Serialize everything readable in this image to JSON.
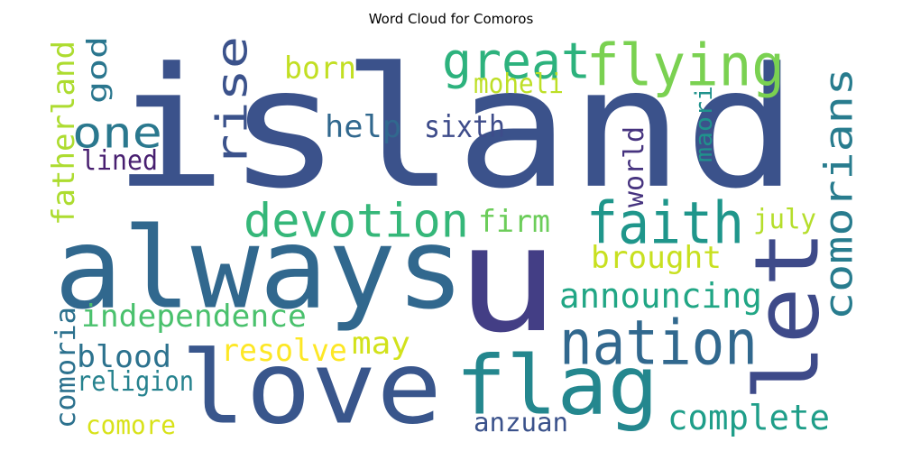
{
  "title": "Word Cloud for Comoros",
  "words": [
    {
      "text": "island",
      "color": "#3b528b"
    },
    {
      "text": "u",
      "color": "#433e85"
    },
    {
      "text": "always",
      "color": "#31688e"
    },
    {
      "text": "love",
      "color": "#39568c"
    },
    {
      "text": "let",
      "color": "#3e4a89"
    },
    {
      "text": "flag",
      "color": "#24878e"
    },
    {
      "text": "nation",
      "color": "#31688e"
    },
    {
      "text": "faith",
      "color": "#1f968b"
    },
    {
      "text": "flying",
      "color": "#7ad151"
    },
    {
      "text": "great",
      "color": "#2db27d"
    },
    {
      "text": "rise",
      "color": "#3b528b"
    },
    {
      "text": "devotion",
      "color": "#35b779"
    },
    {
      "text": "comorians",
      "color": "#287c8e"
    },
    {
      "text": "one",
      "color": "#2a788e"
    },
    {
      "text": "announcing",
      "color": "#21a685"
    },
    {
      "text": "complete",
      "color": "#1f9e89"
    },
    {
      "text": "independence",
      "color": "#4ac16d"
    },
    {
      "text": "help",
      "color": "#31688e"
    },
    {
      "text": "born",
      "color": "#c2df23"
    },
    {
      "text": "brought",
      "color": "#c8e020"
    },
    {
      "text": "sixth",
      "color": "#3e4c8a"
    },
    {
      "text": "moheli",
      "color": "#bddf26"
    },
    {
      "text": "fatherland",
      "color": "#addc30"
    },
    {
      "text": "god",
      "color": "#2a768e"
    },
    {
      "text": "lined",
      "color": "#481f70"
    },
    {
      "text": "firm",
      "color": "#6ccd5a"
    },
    {
      "text": "july",
      "color": "#b5de2b"
    },
    {
      "text": "world",
      "color": "#46337f"
    },
    {
      "text": "maori",
      "color": "#20928c"
    },
    {
      "text": "resolve",
      "color": "#fde725"
    },
    {
      "text": "may",
      "color": "#d2e21b"
    },
    {
      "text": "blood",
      "color": "#2c728e"
    },
    {
      "text": "comoria",
      "color": "#2c718e"
    },
    {
      "text": "religion",
      "color": "#26828e"
    },
    {
      "text": "comore",
      "color": "#d8e219"
    },
    {
      "text": "anzuan",
      "color": "#3b528b"
    }
  ]
}
